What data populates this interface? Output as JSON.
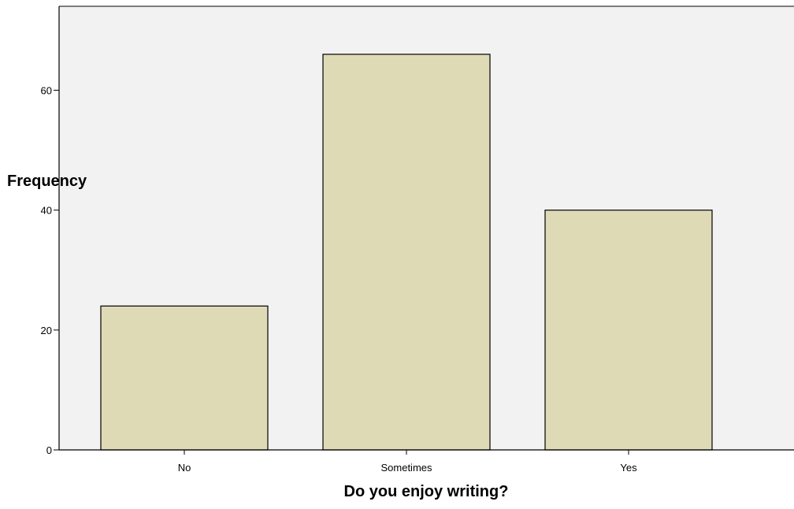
{
  "chart_data": {
    "type": "bar",
    "title": "",
    "xlabel": "Do you enjoy writing?",
    "ylabel": "Frequency",
    "categories": [
      "No",
      "Sometimes",
      "Yes"
    ],
    "values": [
      24,
      66,
      40
    ],
    "ylim": [
      0,
      74
    ],
    "yticks": [
      0,
      20,
      40,
      60
    ],
    "ytick_labels": [
      "0",
      "20",
      "40",
      "60"
    ],
    "grid": false,
    "legend": "none",
    "colors": {
      "bar_fill": "#dfdab6",
      "bar_stroke": "#000000",
      "plot_background": "#f2f2f2",
      "axis": "#000000"
    }
  }
}
